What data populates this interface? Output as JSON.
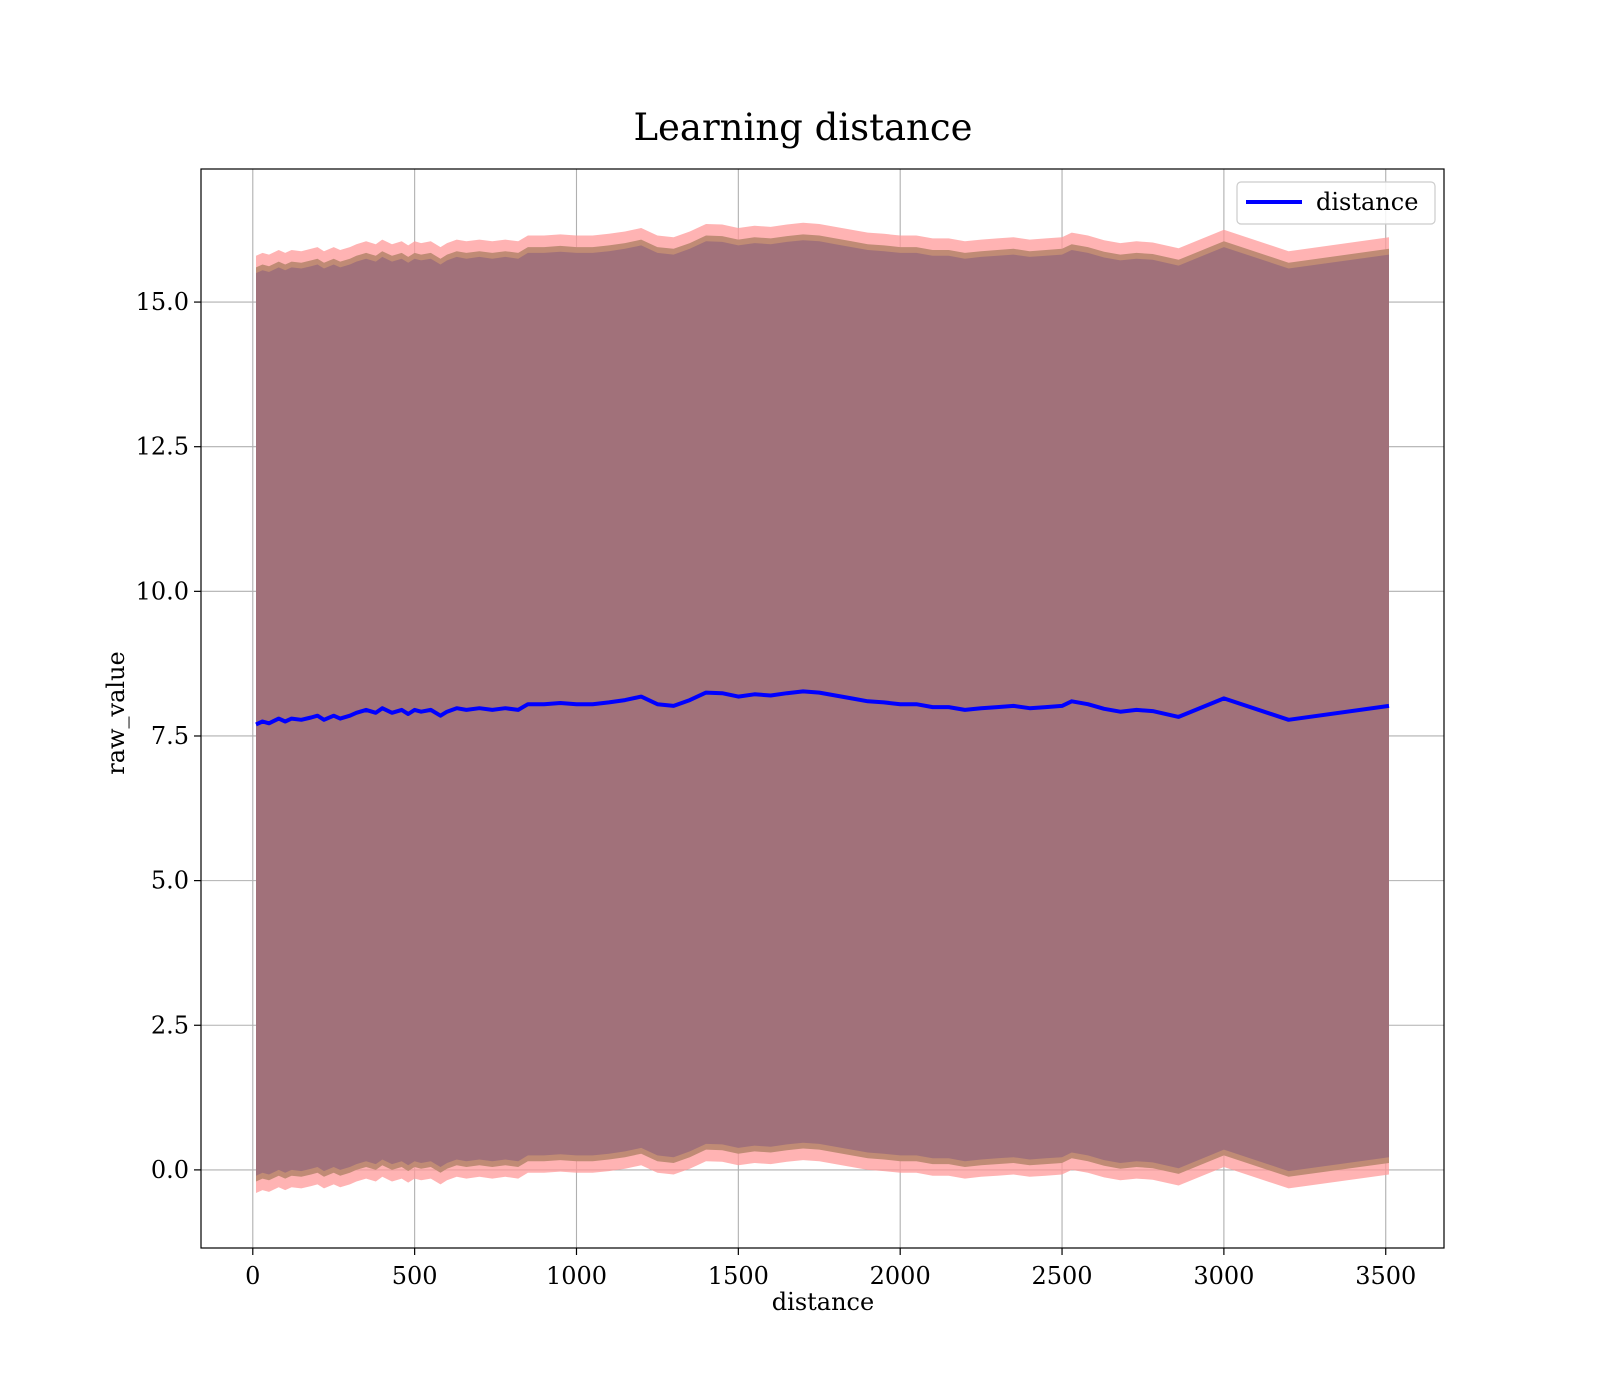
{
  "chart_data": {
    "type": "line",
    "title": "Learning distance",
    "xlabel": "distance",
    "ylabel": "raw_value",
    "xlim": [
      -160,
      3680
    ],
    "ylim": [
      -1.35,
      17.3
    ],
    "grid": true,
    "legend_position": "top-right",
    "x_ticks": [
      0,
      500,
      1000,
      1500,
      2000,
      2500,
      3000,
      3500
    ],
    "x_tick_labels": [
      "0",
      "500",
      "1000",
      "1500",
      "2000",
      "2500",
      "3000",
      "3500"
    ],
    "y_ticks": [
      0.0,
      2.5,
      5.0,
      7.5,
      10.0,
      12.5,
      15.0
    ],
    "y_tick_labels": [
      "0.0",
      "2.5",
      "5.0",
      "7.5",
      "10.0",
      "12.5",
      "15.0"
    ],
    "colors": {
      "line": "#0000ff",
      "outer_band": "#ff9a9a",
      "mid_band": "#c08b75",
      "inner_band": "#a1717a",
      "grid": "#b0b0b0"
    },
    "series": [
      {
        "name": "distance",
        "x": [
          10,
          30,
          50,
          80,
          100,
          120,
          150,
          180,
          200,
          220,
          250,
          270,
          300,
          320,
          350,
          380,
          400,
          430,
          460,
          480,
          500,
          520,
          550,
          580,
          600,
          630,
          660,
          700,
          740,
          780,
          820,
          850,
          900,
          950,
          1000,
          1050,
          1100,
          1150,
          1200,
          1250,
          1300,
          1350,
          1400,
          1450,
          1500,
          1550,
          1600,
          1650,
          1700,
          1750,
          1800,
          1850,
          1900,
          1950,
          2000,
          2050,
          2100,
          2150,
          2200,
          2250,
          2300,
          2350,
          2400,
          2450,
          2500,
          2530,
          2580,
          2630,
          2680,
          2730,
          2780,
          2860,
          3000,
          3200,
          3510
        ],
        "values": [
          7.7,
          7.75,
          7.72,
          7.8,
          7.75,
          7.8,
          7.78,
          7.82,
          7.85,
          7.78,
          7.85,
          7.8,
          7.85,
          7.9,
          7.95,
          7.9,
          7.98,
          7.9,
          7.95,
          7.88,
          7.95,
          7.92,
          7.95,
          7.85,
          7.92,
          7.98,
          7.95,
          7.98,
          7.95,
          7.98,
          7.95,
          8.05,
          8.05,
          8.07,
          8.05,
          8.05,
          8.08,
          8.12,
          8.18,
          8.05,
          8.02,
          8.12,
          8.25,
          8.24,
          8.18,
          8.22,
          8.2,
          8.24,
          8.27,
          8.25,
          8.2,
          8.15,
          8.1,
          8.08,
          8.05,
          8.05,
          8.0,
          8.0,
          7.95,
          7.98,
          8.0,
          8.02,
          7.98,
          8.0,
          8.02,
          8.1,
          8.05,
          7.97,
          7.92,
          7.95,
          7.93,
          7.83,
          8.15,
          7.78,
          8.02
        ]
      }
    ],
    "bands": {
      "outer_half_width": 8.1,
      "mid_half_width": 7.9,
      "inner_half_width": 7.8
    }
  }
}
